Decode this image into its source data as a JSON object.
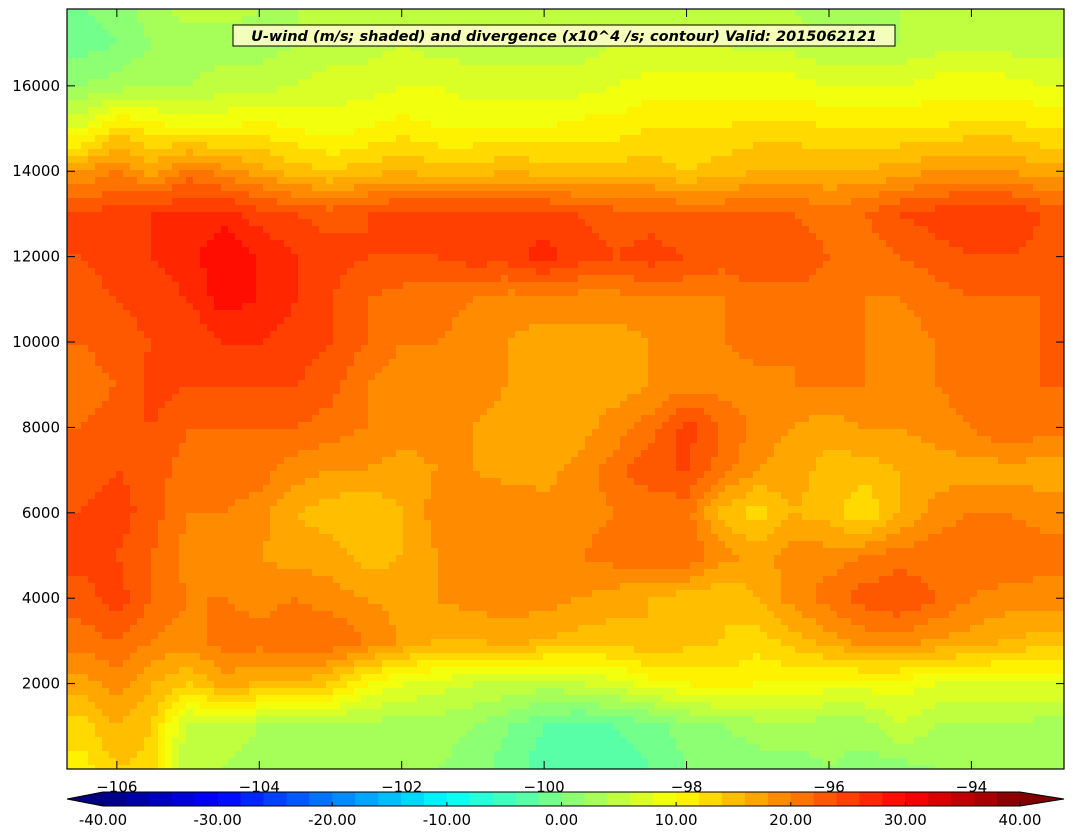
{
  "chart_data": {
    "type": "heatmap",
    "title": "U-wind (m/s; shaded) and divergence (x10^4 /s; contour) Valid: 2015062121",
    "xlabel": "",
    "ylabel": "",
    "xlim": [
      -106.7,
      -92.7
    ],
    "ylim": [
      0,
      17800
    ],
    "x_ticks": [
      -106,
      -104,
      -102,
      -100,
      -98,
      -96,
      -94
    ],
    "x_tick_labels": [
      "−106",
      "−104",
      "−102",
      "−100",
      "−98",
      "−96",
      "−94"
    ],
    "y_ticks": [
      2000,
      4000,
      6000,
      8000,
      10000,
      12000,
      14000,
      16000
    ],
    "y_tick_labels": [
      "2000",
      "4000",
      "6000",
      "8000",
      "10000",
      "12000",
      "14000",
      "16000"
    ],
    "grid": false,
    "colorbar": {
      "orientation": "horizontal",
      "placement": "bottom",
      "extend": "both",
      "vmin": -40,
      "vmax": 40,
      "levels": 40,
      "colormap": "jet",
      "tick_values": [
        -40,
        -30,
        -20,
        -10,
        0,
        10,
        20,
        30,
        40
      ],
      "tick_labels": [
        "-40.00",
        "-30.00",
        "-20.00",
        "-10.00",
        "0.00",
        "10.00",
        "20.00",
        "30.00",
        "40.00"
      ]
    },
    "field_description": "U-wind (m/s) cross-section, height vs longitude",
    "x_samples": [
      -106.5,
      -106,
      -105.5,
      -105,
      -104.5,
      -104,
      -103.5,
      -103,
      -102.5,
      -102,
      -101.5,
      -101,
      -100.5,
      -100,
      -99.5,
      -99,
      -98.5,
      -98,
      -97.5,
      -97,
      -96.5,
      -96,
      -95.5,
      -95,
      -94.5,
      -94,
      -93.5,
      -93
    ],
    "y_samples": [
      0,
      1000,
      2000,
      3000,
      4000,
      5000,
      6000,
      7000,
      8000,
      9000,
      10000,
      11000,
      12000,
      13000,
      14000,
      15000,
      16000,
      17000,
      17800
    ],
    "values": [
      [
        11,
        14,
        13,
        4,
        4,
        3,
        3,
        3,
        3,
        3,
        2,
        1,
        -1,
        -3,
        -4,
        -3,
        -2,
        0,
        0,
        1,
        1,
        2,
        1,
        1,
        2,
        3,
        3,
        2
      ],
      [
        13,
        16,
        14,
        5,
        5,
        4,
        4,
        3,
        3,
        3,
        3,
        2,
        0,
        -2,
        -3,
        -2,
        -1,
        1,
        2,
        3,
        3,
        3,
        3,
        6,
        4,
        4,
        4,
        3
      ],
      [
        17,
        19,
        16,
        14,
        17,
        16,
        16,
        14,
        10,
        8,
        7,
        6,
        6,
        5,
        6,
        7,
        9,
        10,
        11,
        10,
        10,
        9,
        9,
        9,
        8,
        8,
        8,
        8
      ],
      [
        21,
        22,
        20,
        19,
        21,
        21,
        22,
        22,
        20,
        18,
        16,
        16,
        17,
        16,
        15,
        15,
        16,
        15,
        14,
        13,
        15,
        17,
        19,
        19,
        18,
        17,
        16,
        15
      ],
      [
        23,
        25,
        22,
        20,
        20,
        19,
        20,
        19,
        18,
        17,
        18,
        19,
        19,
        19,
        18,
        17,
        16,
        15,
        14,
        16,
        19,
        21,
        23,
        24,
        22,
        20,
        19,
        19
      ],
      [
        25,
        24,
        22,
        19,
        19,
        18,
        17,
        17,
        15,
        16,
        18,
        19,
        20,
        20,
        20,
        21,
        22,
        22,
        19,
        17,
        19,
        19,
        20,
        21,
        21,
        22,
        22,
        21
      ],
      [
        24,
        25,
        23,
        20,
        20,
        19,
        16,
        15,
        14,
        16,
        19,
        20,
        20,
        19,
        19,
        20,
        20,
        21,
        15,
        13,
        16,
        15,
        12,
        16,
        19,
        20,
        20,
        19
      ],
      [
        23,
        24,
        23,
        21,
        21,
        21,
        19,
        18,
        18,
        17,
        18,
        18,
        17,
        17,
        19,
        21,
        24,
        24,
        21,
        18,
        17,
        15,
        15,
        16,
        17,
        17,
        17,
        17
      ],
      [
        22,
        23,
        24,
        22,
        22,
        22,
        22,
        21,
        20,
        19,
        19,
        18,
        17,
        16,
        17,
        19,
        21,
        25,
        22,
        19,
        18,
        17,
        18,
        18,
        19,
        20,
        22,
        21
      ],
      [
        21,
        22,
        25,
        24,
        24,
        24,
        24,
        23,
        20,
        19,
        20,
        19,
        18,
        17,
        17,
        17,
        18,
        19,
        19,
        19,
        20,
        20,
        20,
        19,
        20,
        21,
        22,
        22
      ],
      [
        22,
        23,
        24,
        24,
        26,
        26,
        25,
        24,
        22,
        20,
        20,
        19,
        18,
        17,
        17,
        17,
        18,
        19,
        20,
        21,
        20,
        20,
        20,
        19,
        20,
        21,
        21,
        22
      ],
      [
        23,
        24,
        25,
        26,
        29,
        28,
        26,
        24,
        22,
        21,
        21,
        20,
        19,
        19,
        19,
        19,
        20,
        20,
        20,
        21,
        21,
        21,
        20,
        20,
        21,
        22,
        22,
        22
      ],
      [
        24,
        25,
        26,
        27,
        30,
        28,
        26,
        25,
        24,
        24,
        24,
        25,
        25,
        27,
        25,
        24,
        25,
        24,
        23,
        24,
        24,
        22,
        21,
        22,
        23,
        24,
        24,
        23
      ],
      [
        24,
        25,
        26,
        26,
        27,
        25,
        24,
        23,
        24,
        25,
        25,
        25,
        25,
        25,
        24,
        23,
        23,
        22,
        22,
        22,
        22,
        21,
        22,
        24,
        25,
        26,
        26,
        24
      ],
      [
        18,
        20,
        17,
        21,
        19,
        17,
        15,
        14,
        15,
        16,
        15,
        15,
        16,
        15,
        15,
        15,
        15,
        14,
        15,
        16,
        16,
        16,
        16,
        17,
        18,
        18,
        18,
        17
      ],
      [
        8,
        13,
        11,
        10,
        10,
        11,
        10,
        9,
        10,
        11,
        10,
        10,
        10,
        10,
        11,
        11,
        12,
        12,
        12,
        13,
        13,
        12,
        12,
        12,
        12,
        13,
        13,
        12
      ],
      [
        2,
        3,
        4,
        4,
        5,
        5,
        6,
        7,
        7,
        8,
        8,
        7,
        7,
        7,
        7,
        8,
        9,
        9,
        9,
        9,
        9,
        8,
        8,
        8,
        9,
        9,
        9,
        8
      ],
      [
        -1,
        0,
        2,
        3,
        3,
        3,
        4,
        5,
        5,
        6,
        5,
        5,
        5,
        5,
        5,
        6,
        6,
        6,
        6,
        5,
        5,
        4,
        4,
        4,
        5,
        5,
        5,
        5
      ],
      [
        0,
        1,
        3,
        5,
        5,
        4,
        4,
        5,
        5,
        6,
        5,
        4,
        4,
        5,
        5,
        6,
        5,
        5,
        5,
        4,
        4,
        3,
        3,
        4,
        4,
        4,
        4,
        4
      ]
    ]
  }
}
